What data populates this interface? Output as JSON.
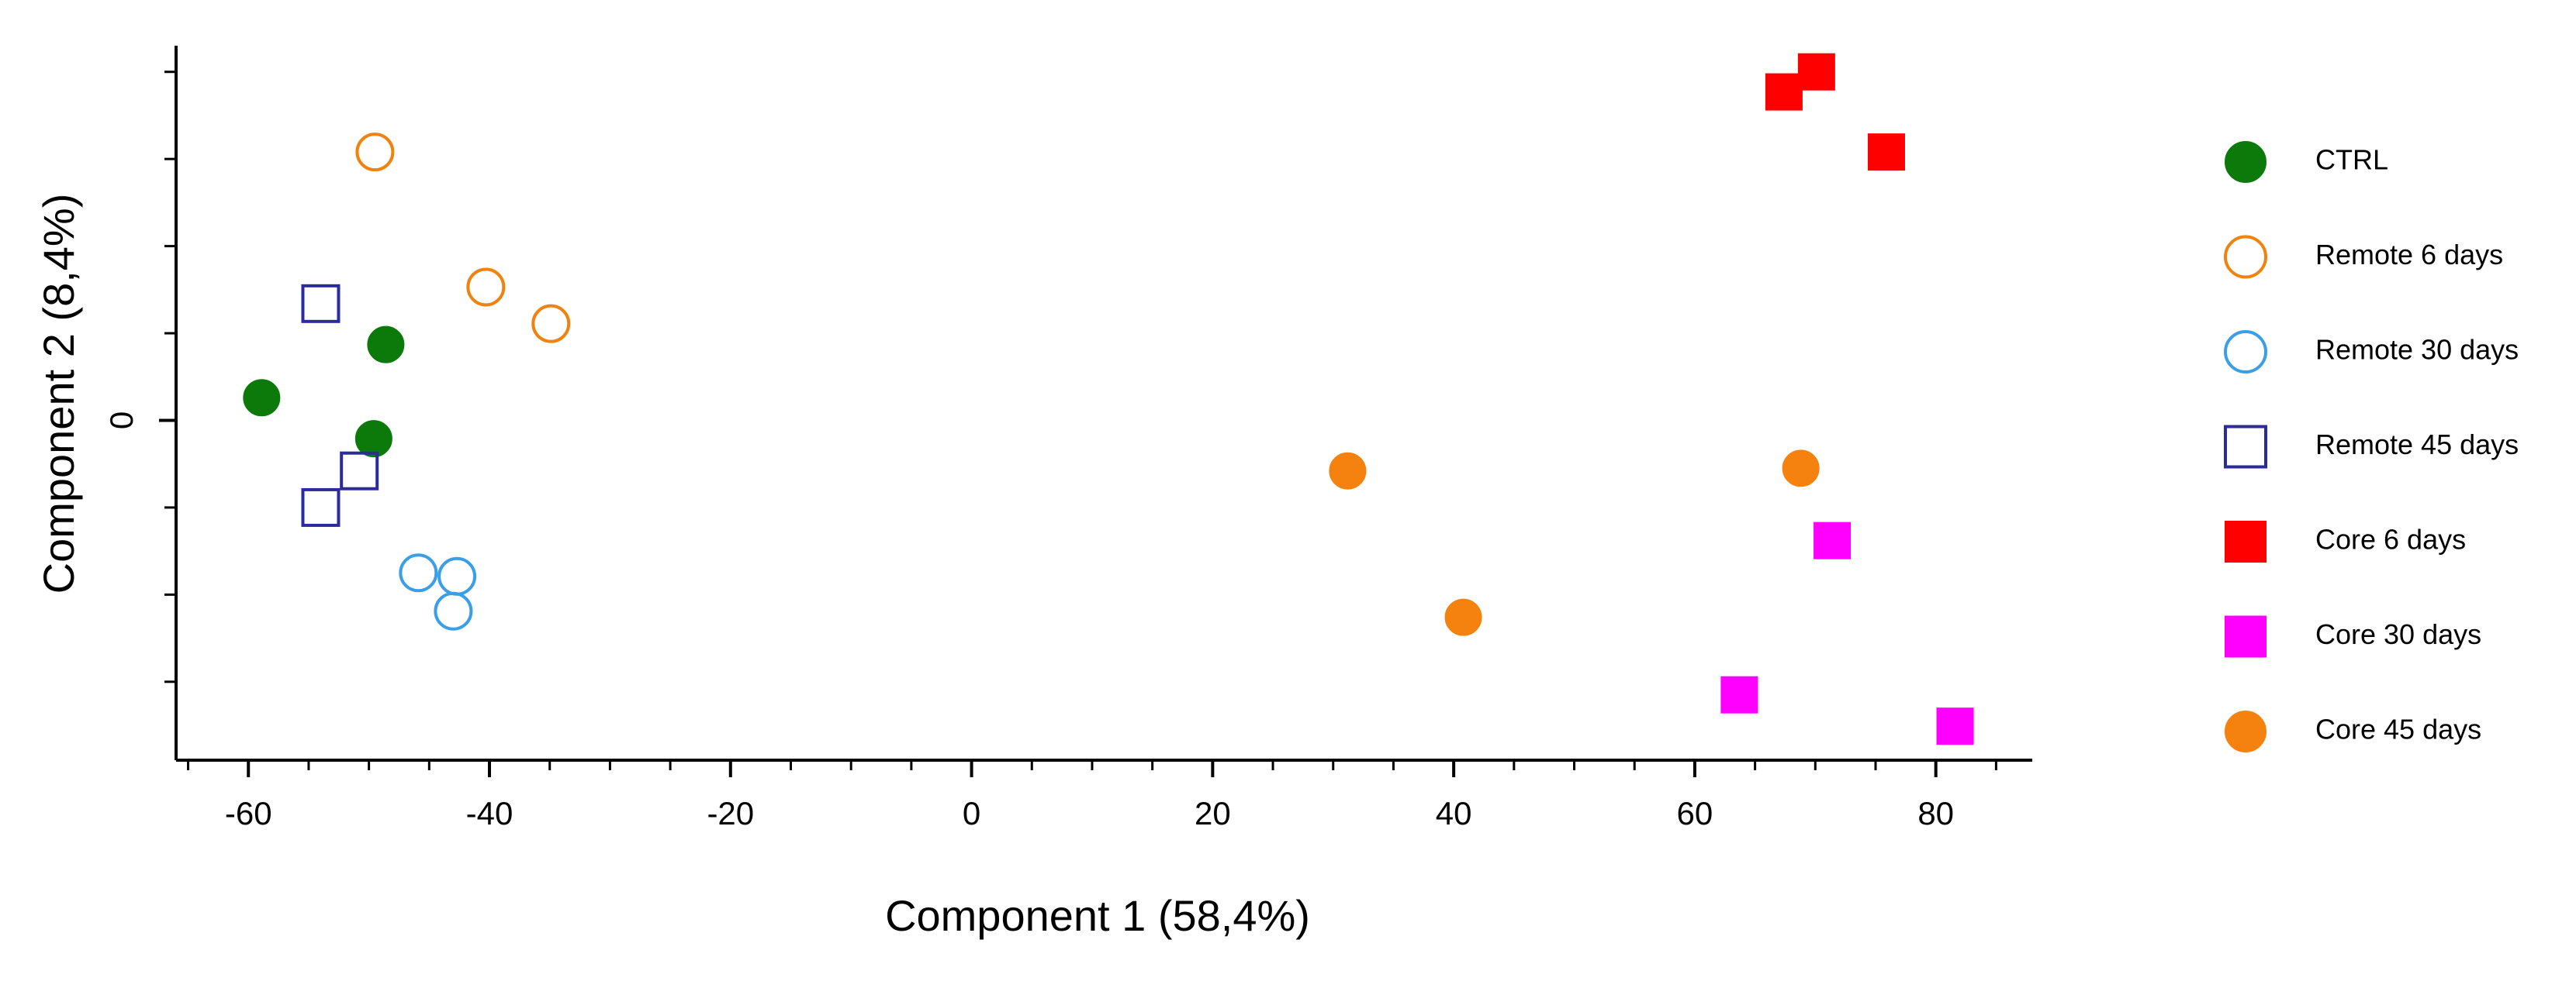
{
  "chart_data": {
    "type": "scatter",
    "xlabel": "Component 1 (58,4%)",
    "ylabel": "Component 2 (8,4%)",
    "xlim": [
      -66,
      88
    ],
    "ylim": [
      -39,
      43
    ],
    "xticks": [
      -60,
      -40,
      -20,
      0,
      20,
      40,
      60,
      80
    ],
    "xminorticks": [
      -65,
      -55,
      -50,
      -45,
      -35,
      -30,
      -25,
      -15,
      -10,
      -5,
      5,
      10,
      15,
      25,
      30,
      35,
      45,
      50,
      55,
      65,
      70,
      75,
      85
    ],
    "yticks": [
      0
    ],
    "yminorticks": [
      -30,
      -20,
      -10,
      10,
      20,
      30,
      40
    ],
    "legend": "right",
    "series": [
      {
        "name": "CTRL",
        "color": "#0b7a0b",
        "marker": "circle",
        "filled": true,
        "x": [
          -58.9,
          -48.6,
          -49.6
        ],
        "y": [
          2.6,
          8.7,
          -2.1
        ]
      },
      {
        "name": "Remote 6 days",
        "color": "#f0820f",
        "marker": "circle",
        "filled": false,
        "x": [
          -49.5,
          -40.3,
          -34.9
        ],
        "y": [
          30.8,
          15.3,
          11.1
        ]
      },
      {
        "name": "Remote 30 days",
        "color": "#3a9ee8",
        "marker": "circle",
        "filled": false,
        "x": [
          -45.9,
          -42.7,
          -43.0
        ],
        "y": [
          -17.5,
          -17.9,
          -21.9
        ]
      },
      {
        "name": "Remote 45 days",
        "color": "#2b2b9a",
        "marker": "square",
        "filled": false,
        "x": [
          -54.0,
          -50.8,
          -54.0
        ],
        "y": [
          13.4,
          -5.8,
          -10.0
        ]
      },
      {
        "name": "Core 6 days",
        "color": "#ff0000",
        "marker": "square",
        "filled": true,
        "x": [
          67.4,
          70.1,
          75.9
        ],
        "y": [
          37.7,
          40.0,
          30.8
        ]
      },
      {
        "name": "Core 30 days",
        "color": "#ff00ff",
        "marker": "square",
        "filled": true,
        "x": [
          71.4,
          63.7,
          81.6
        ],
        "y": [
          -13.8,
          -31.5,
          -35.1
        ]
      },
      {
        "name": "Core 45 days",
        "color": "#f5820f",
        "marker": "circle",
        "filled": true,
        "x": [
          31.2,
          40.8,
          68.8
        ],
        "y": [
          -5.8,
          -22.6,
          -5.5
        ]
      }
    ]
  }
}
